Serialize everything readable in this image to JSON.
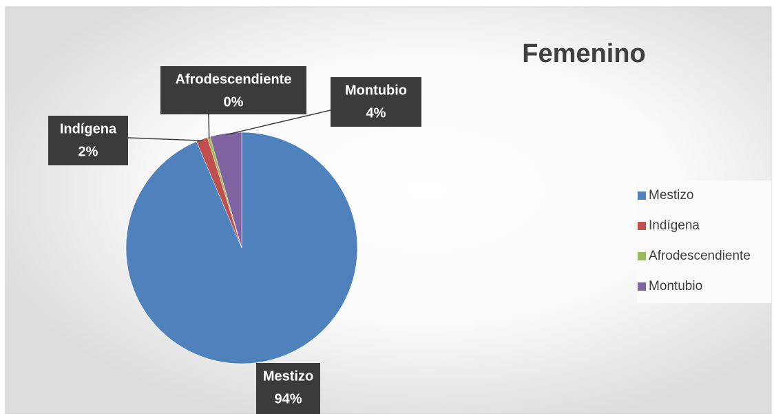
{
  "chart_data": {
    "type": "pie",
    "title": "Femenino",
    "categories": [
      "Mestizo",
      "Indígena",
      "Afrodescendiente",
      "Montubio"
    ],
    "values": [
      93.6,
      1.6,
      0.4,
      4.4
    ],
    "value_labels": [
      "94%",
      "2%",
      "0%",
      "4%"
    ],
    "colors": [
      "#4f81bd",
      "#c0504d",
      "#9bbb59",
      "#8064a2"
    ],
    "legend": "right"
  }
}
